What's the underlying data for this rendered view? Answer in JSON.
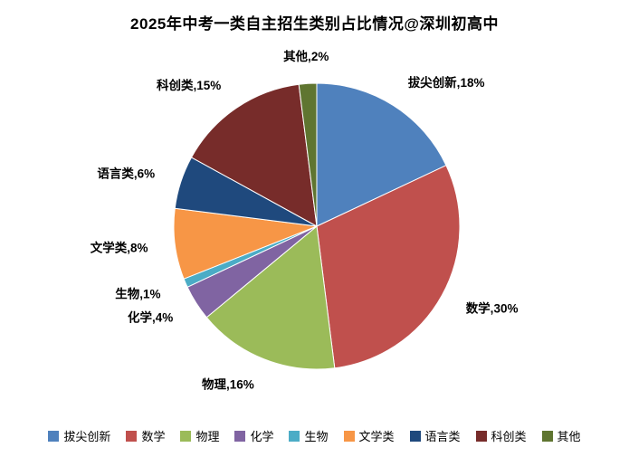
{
  "title": "2025年中考一类自主招生类别占比情况@深圳初高中",
  "chart_data": {
    "type": "pie",
    "title": "2025年中考一类自主招生类别占比情况@深圳初高中",
    "start_angle_deg": 0,
    "direction": "clockwise",
    "legend_position": "bottom",
    "background_color": "#ffffff",
    "slice_border_color": "#ffffff",
    "slices": [
      {
        "name": "拔尖创新",
        "value": 18,
        "label": "拔尖创新,18%",
        "color": "#4F81BD"
      },
      {
        "name": "数学",
        "value": 30,
        "label": "数学,30%",
        "color": "#C0504D"
      },
      {
        "name": "物理",
        "value": 16,
        "label": "物理,16%",
        "color": "#9BBB59"
      },
      {
        "name": "化学",
        "value": 4,
        "label": "化学,4%",
        "color": "#8064A2"
      },
      {
        "name": "生物",
        "value": 1,
        "label": "生物,1%",
        "color": "#4BACC6"
      },
      {
        "name": "文学类",
        "value": 8,
        "label": "文学类,8%",
        "color": "#F79646"
      },
      {
        "name": "语言类",
        "value": 6,
        "label": "语言类,6%",
        "color": "#1F497D"
      },
      {
        "name": "科创类",
        "value": 15,
        "label": "科创类,15%",
        "color": "#772C2A"
      },
      {
        "name": "其他",
        "value": 2,
        "label": "其他,2%",
        "color": "#5F7530"
      }
    ]
  }
}
